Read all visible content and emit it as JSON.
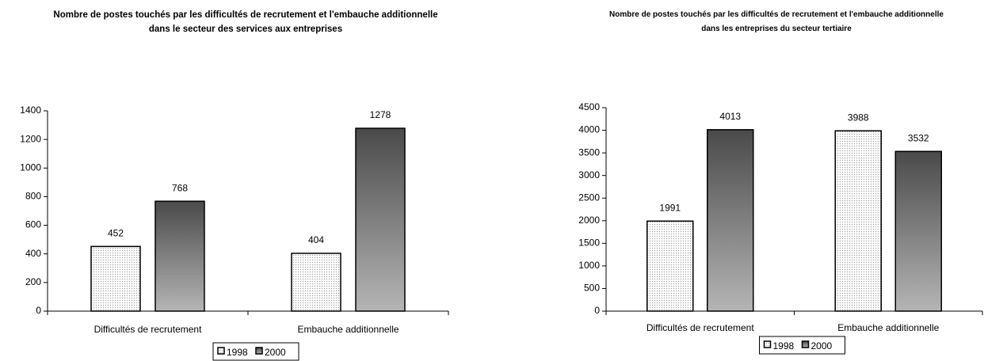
{
  "chart_data": [
    {
      "type": "bar",
      "title": "Nombre de postes touchés par les difficultés de recrutement et l'embauche additionnelle dans le secteur des services aux entreprises",
      "categories": [
        "Difficultés de recrutement",
        "Embauche additionnelle"
      ],
      "series": [
        {
          "name": "1998",
          "color": "#ffffff",
          "values": [
            452,
            404
          ]
        },
        {
          "name": "2000",
          "color": "#4a4a4a",
          "values": [
            768,
            1278
          ]
        }
      ],
      "ylim": [
        0,
        1400
      ],
      "yticks": [
        0,
        200,
        400,
        600,
        800,
        1000,
        1200,
        1400
      ],
      "legend": "bottom"
    },
    {
      "type": "bar",
      "title": "Nombre de postes touchés par les difficultés de recrutement et l'embauche additionnelle dans les entreprises du secteur tertiaire",
      "categories": [
        "Difficultés de recrutement",
        "Embauche additionnelle"
      ],
      "series": [
        {
          "name": "1998",
          "color": "#ffffff",
          "values": [
            1991,
            3988
          ]
        },
        {
          "name": "2000",
          "color": "#4a4a4a",
          "values": [
            4013,
            3532
          ]
        }
      ],
      "ylim": [
        0,
        4500
      ],
      "yticks": [
        0,
        500,
        1000,
        1500,
        2000,
        2500,
        3000,
        3500,
        4000,
        4500
      ],
      "legend": "bottom"
    }
  ]
}
